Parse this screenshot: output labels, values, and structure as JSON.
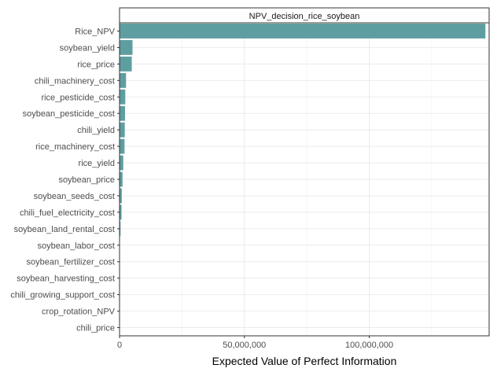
{
  "chart_data": {
    "type": "bar",
    "orientation": "horizontal",
    "title": "NPV_decision_rice_soybean",
    "xlabel": "Expected Value of Perfect Information",
    "ylabel": "",
    "xlim": [
      0,
      148000000
    ],
    "x_ticks": [
      0,
      50000000,
      100000000
    ],
    "x_tick_labels": [
      "0",
      "50,000,000",
      "100,000,000"
    ],
    "grid": true,
    "legend": "none",
    "bar_color": "#5f9ea0",
    "categories": [
      "Rice_NPV",
      "soybean_yield",
      "rice_price",
      "chili_machinery_cost",
      "rice_pesticide_cost",
      "soybean_pesticide_cost",
      "chili_yield",
      "rice_machinery_cost",
      "rice_yield",
      "soybean_price",
      "soybean_seeds_cost",
      "chili_fuel_electricity_cost",
      "soybean_land_rental_cost",
      "soybean_labor_cost",
      "soybean_fertilizer_cost",
      "soybean_harvesting_cost",
      "chili_growing_support_cost",
      "crop_rotation_NPV",
      "chili_price"
    ],
    "values": [
      146500000,
      5200000,
      4900000,
      2600000,
      2300000,
      2200000,
      2100000,
      2000000,
      1500000,
      1200000,
      900000,
      800000,
      400000,
      100000,
      80000,
      60000,
      40000,
      20000,
      0
    ]
  }
}
